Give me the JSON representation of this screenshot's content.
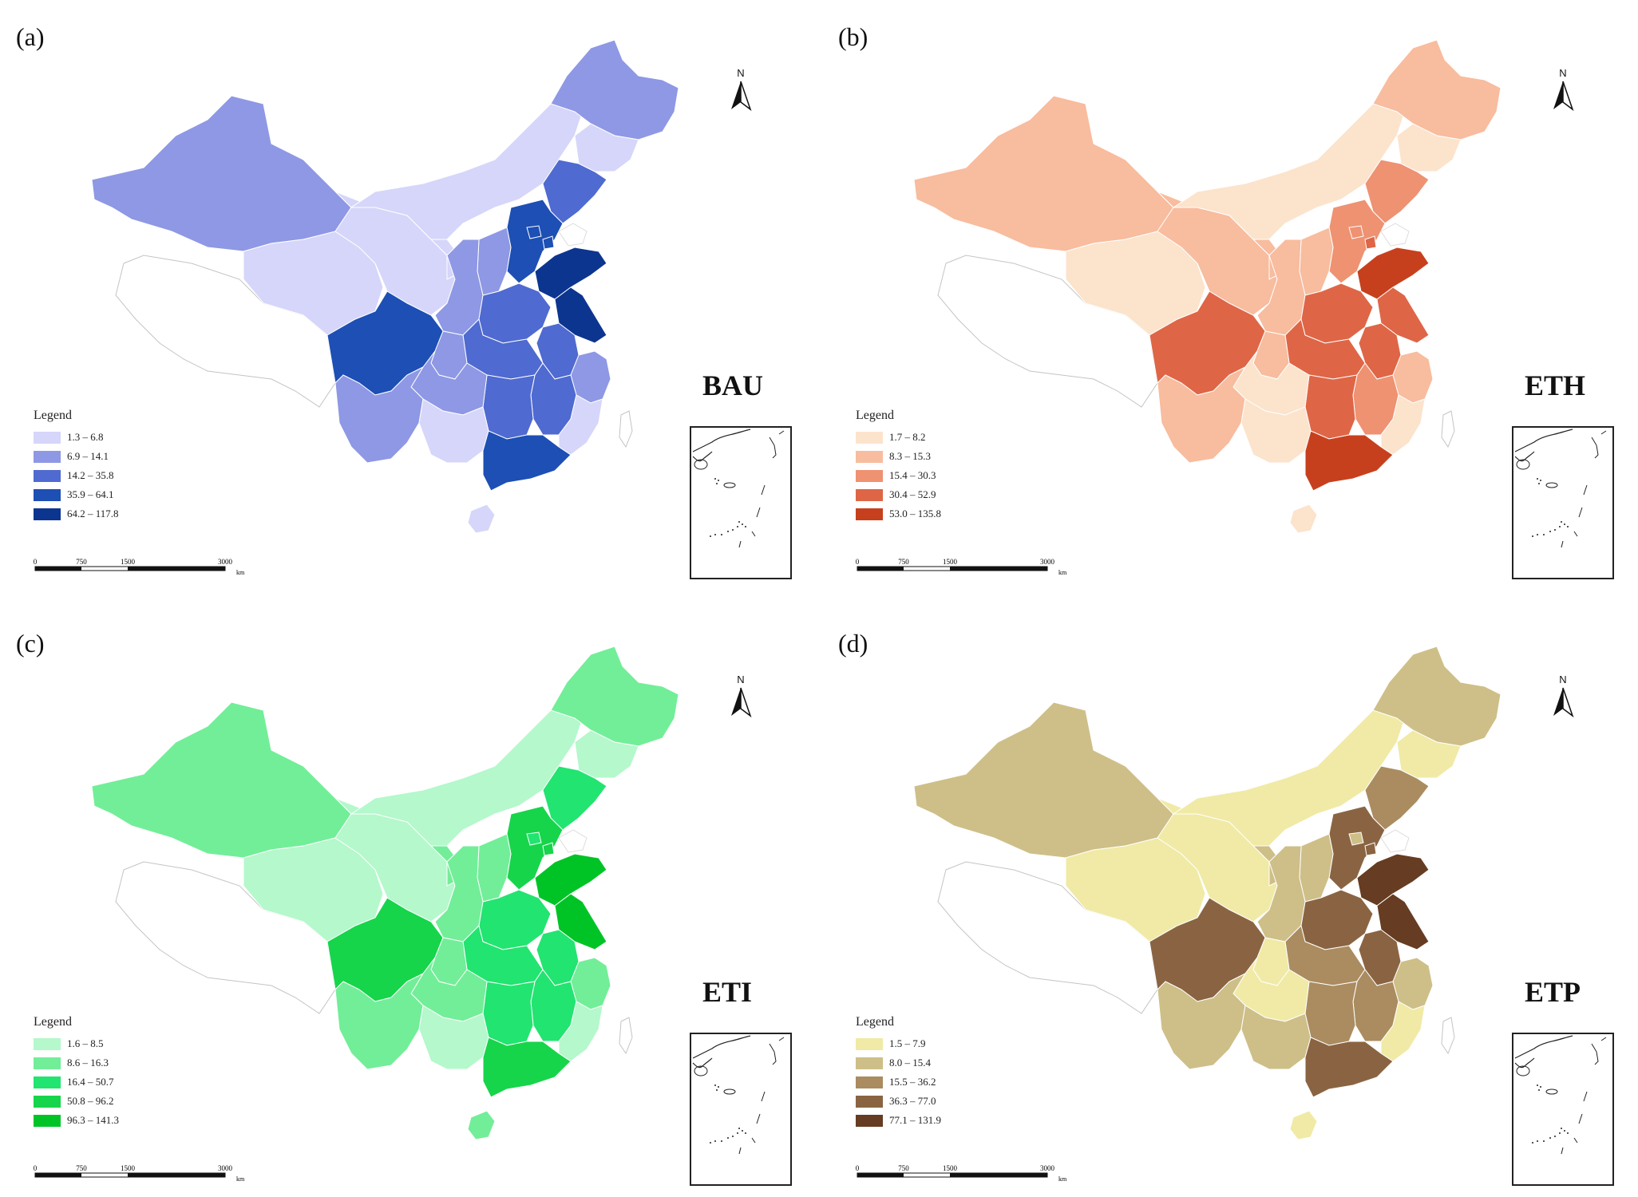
{
  "legend_title": "Legend",
  "scalebar": {
    "labels": [
      "0",
      "750",
      "1500",
      "3000"
    ],
    "unit": "km"
  },
  "north_label": "N",
  "panels": [
    {
      "label": "(a)",
      "scenario": "BAU",
      "classes": [
        "1.3 – 6.8",
        "6.9 – 14.1",
        "14.2 – 35.8",
        "35.9 – 64.1",
        "64.2 – 117.8"
      ],
      "colors": [
        "#d6d6fa",
        "#8e98e4",
        "#4f6ad0",
        "#1d4fb4",
        "#0c3590"
      ]
    },
    {
      "label": "(b)",
      "scenario": "ETH",
      "classes": [
        "1.7 – 8.2",
        "8.3 – 15.3",
        "15.4 – 30.3",
        "30.4 – 52.9",
        "53.0 – 135.8"
      ],
      "colors": [
        "#fce3cc",
        "#f8bc9e",
        "#ee9272",
        "#de6646",
        "#c7401e"
      ]
    },
    {
      "label": "(c)",
      "scenario": "ETI",
      "classes": [
        "1.6 – 8.5",
        "8.6 – 16.3",
        "16.4 – 50.7",
        "50.8 – 96.2",
        "96.3 – 141.3"
      ],
      "colors": [
        "#b4f8cc",
        "#72ee98",
        "#22e470",
        "#16d54a",
        "#00c426"
      ]
    },
    {
      "label": "(d)",
      "scenario": "ETP",
      "classes": [
        "1.5 – 7.9",
        "8.0 – 15.4",
        "15.5 – 36.2",
        "36.3 – 77.0",
        "77.1 – 131.9"
      ],
      "colors": [
        "#f0eaa6",
        "#cebf88",
        "#aa8c60",
        "#8a6442",
        "#663c22"
      ]
    }
  ],
  "map_classes": {
    "xinjiang": 1,
    "tibet": -1,
    "qinghai": 0,
    "gansu": 0,
    "inner_mongolia": 0,
    "ningxia": 0,
    "heilongjiang": 1,
    "jilin": 0,
    "liaoning": 2,
    "hebei": 3,
    "beijing": 3,
    "tianjin": 3,
    "shandong": 4,
    "shanxi": 1,
    "shaanxi": 1,
    "henan": 2,
    "jiangsu": 4,
    "anhui": 2,
    "sichuan": 3,
    "chongqing": 1,
    "hubei": 2,
    "hunan": 2,
    "jiangxi": 2,
    "zhejiang": 1,
    "fujian": 0,
    "guangdong": 3,
    "guangxi": 0,
    "guizhou": 1,
    "yunnan": 1,
    "hainan": 0,
    "taiwan": -1
  },
  "map_classes_by_panel": [
    {},
    {
      "heilongjiang": 1,
      "xinjiang": 1,
      "inner_mongolia": 0,
      "liaoning": 2,
      "hebei": 2,
      "beijing": 2,
      "shandong": 4,
      "jiangsu": 3,
      "henan": 3,
      "anhui": 3,
      "hubei": 3,
      "sichuan": 3,
      "guangdong": 4,
      "hunan": 3,
      "jiangxi": 2,
      "zhejiang": 1,
      "fujian": 0,
      "guangxi": 0,
      "guizhou": 0,
      "yunnan": 1,
      "shanxi": 1,
      "shaanxi": 1,
      "chongqing": 1,
      "qinghai": 0,
      "gansu": 1,
      "hainan": 0,
      "jilin": 0,
      "tianjin": 3,
      "ningxia": 1
    },
    {
      "heilongjiang": 1,
      "xinjiang": 1,
      "inner_mongolia": 0,
      "liaoning": 2,
      "hebei": 3,
      "beijing": 2,
      "shandong": 4,
      "jiangsu": 4,
      "henan": 2,
      "anhui": 2,
      "hubei": 2,
      "sichuan": 3,
      "guangdong": 3,
      "hunan": 2,
      "jiangxi": 2,
      "zhejiang": 1,
      "fujian": 0,
      "guangxi": 0,
      "guizhou": 1,
      "yunnan": 1,
      "shanxi": 1,
      "shaanxi": 1,
      "chongqing": 1,
      "qinghai": 0,
      "gansu": 0,
      "hainan": 1,
      "jilin": 0,
      "tianjin": 3,
      "ningxia": 1
    },
    {
      "heilongjiang": 1,
      "xinjiang": 1,
      "inner_mongolia": 0,
      "liaoning": 2,
      "hebei": 3,
      "beijing": 1,
      "shandong": 4,
      "jiangsu": 4,
      "henan": 3,
      "anhui": 3,
      "hubei": 2,
      "sichuan": 3,
      "guangdong": 3,
      "hunan": 2,
      "jiangxi": 2,
      "zhejiang": 1,
      "fujian": 0,
      "guangxi": 1,
      "guizhou": 0,
      "yunnan": 1,
      "shanxi": 1,
      "shaanxi": 1,
      "chongqing": 0,
      "qinghai": 0,
      "gansu": 0,
      "hainan": 0,
      "jilin": 0,
      "tianjin": 3,
      "ningxia": 1
    }
  ]
}
